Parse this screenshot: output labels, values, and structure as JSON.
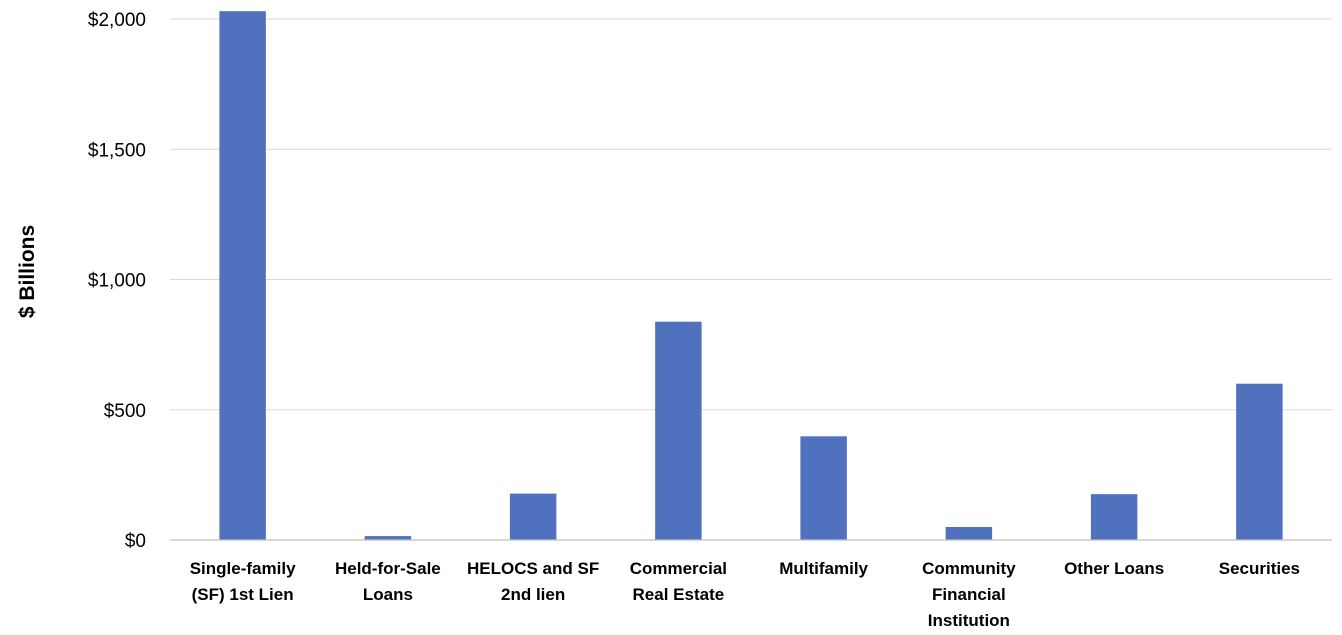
{
  "chart_data": {
    "type": "bar",
    "title": "",
    "xlabel": "",
    "ylabel": "$ Billions",
    "categories": [
      [
        "Single-family",
        "(SF) 1st Lien"
      ],
      [
        "Held-for-Sale",
        "Loans"
      ],
      [
        "HELOCS and SF",
        "2nd lien"
      ],
      [
        "Commercial",
        "Real Estate"
      ],
      [
        "Multifamily"
      ],
      [
        "Community",
        "Financial",
        "Institution"
      ],
      [
        "Other Loans"
      ],
      [
        "Securities"
      ]
    ],
    "values": [
      2030,
      15,
      178,
      838,
      398,
      50,
      176,
      600
    ],
    "ylim": [
      0,
      2000
    ],
    "yticks": [
      0,
      500,
      1000,
      1500,
      2000
    ],
    "ytick_labels": [
      "$0",
      "$500",
      "$1,000",
      "$1,500",
      "$2,000"
    ],
    "grid": true,
    "legend": "none",
    "bar_color": "#4f71be"
  }
}
